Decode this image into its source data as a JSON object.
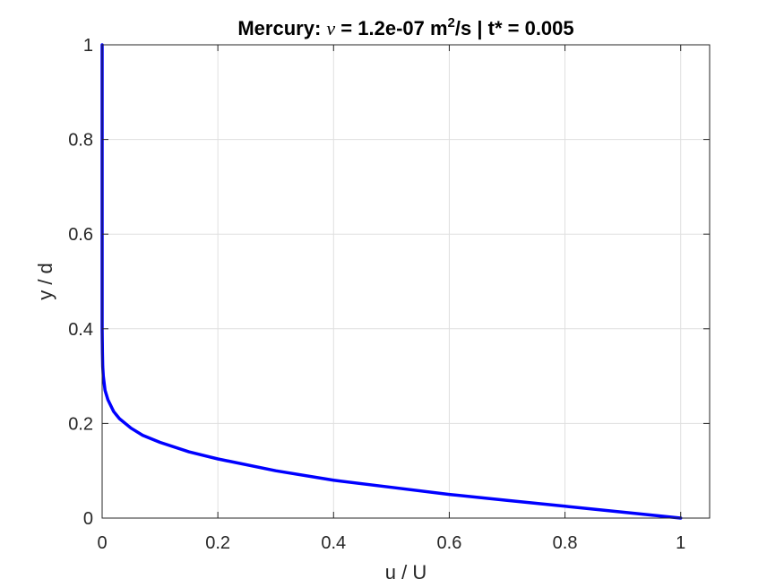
{
  "chart_data": {
    "type": "line",
    "title": {
      "prefix": "Mercury: ",
      "symbol": "ν",
      "middle": " = 1.2e-07 m",
      "superscript": "2",
      "suffix": "/s | t* = 0.005"
    },
    "xlabel": "u / U",
    "ylabel": "y / d",
    "xlim": [
      0,
      1.05
    ],
    "ylim": [
      0,
      1
    ],
    "xticks": [
      "0",
      "0.2",
      "0.4",
      "0.6",
      "0.8",
      "1"
    ],
    "yticks": [
      "0",
      "0.2",
      "0.4",
      "0.6",
      "0.8",
      "1"
    ],
    "grid": true,
    "color": "#0000ff",
    "series": [
      {
        "x": [
          1.0,
          0.9,
          0.8,
          0.7,
          0.6,
          0.5,
          0.4,
          0.3,
          0.2,
          0.15,
          0.1,
          0.07,
          0.05,
          0.03,
          0.02,
          0.01,
          0.005,
          0.002,
          0.001,
          0.0005,
          0.0,
          0.0
        ],
        "y": [
          0.0,
          0.0125,
          0.025,
          0.0375,
          0.05,
          0.065,
          0.08,
          0.1,
          0.125,
          0.14,
          0.16,
          0.175,
          0.19,
          0.21,
          0.225,
          0.25,
          0.27,
          0.3,
          0.32,
          0.35,
          0.4,
          1.0
        ]
      }
    ]
  }
}
